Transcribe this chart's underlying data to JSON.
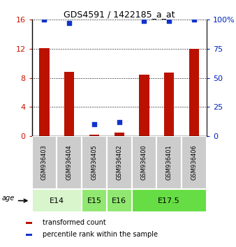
{
  "title": "GDS4591 / 1422185_a_at",
  "samples": [
    "GSM936403",
    "GSM936404",
    "GSM936405",
    "GSM936402",
    "GSM936400",
    "GSM936401",
    "GSM936406"
  ],
  "transformed_counts": [
    12.1,
    8.8,
    0.2,
    0.5,
    8.4,
    8.7,
    12.0
  ],
  "percentile_ranks": [
    100,
    97,
    10,
    12,
    99,
    99,
    100
  ],
  "ylim_left": [
    0,
    16
  ],
  "ylim_right": [
    0,
    100
  ],
  "yticks_left": [
    0,
    4,
    8,
    12,
    16
  ],
  "yticks_right": [
    0,
    25,
    50,
    75,
    100
  ],
  "yticklabels_right": [
    "0",
    "25",
    "50",
    "75",
    "100%"
  ],
  "age_groups": [
    {
      "label": "E14",
      "start": 0,
      "end": 2,
      "color": "#d8f5cc"
    },
    {
      "label": "E15",
      "start": 2,
      "end": 3,
      "color": "#90e870"
    },
    {
      "label": "E16",
      "start": 3,
      "end": 4,
      "color": "#90e870"
    },
    {
      "label": "E17.5",
      "start": 4,
      "end": 7,
      "color": "#66dd44"
    }
  ],
  "bar_color_red": "#bb1100",
  "bar_color_blue": "#1133cc",
  "bar_width": 0.4,
  "background_color": "#ffffff",
  "sample_box_color": "#cccccc",
  "legend_red_label": "transformed count",
  "legend_blue_label": "percentile rank within the sample",
  "age_label": "age",
  "left_axis_color": "#cc1100",
  "right_axis_color": "#0022bb"
}
